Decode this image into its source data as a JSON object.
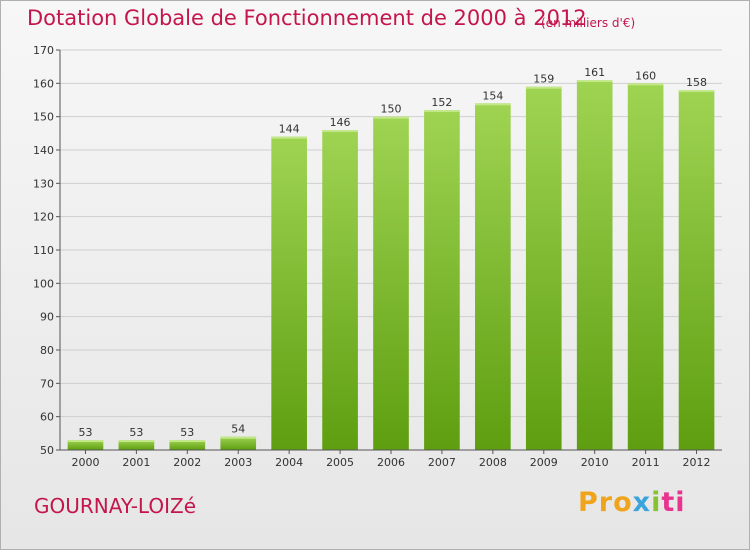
{
  "header": {
    "title": "Dotation Globale de Fonctionnement de 2000 à 2012",
    "subtitle": "(en milliers d'€)"
  },
  "footer": {
    "commune": "GOURNAY-LOIZé",
    "logo_parts": [
      "Pro",
      "x",
      "i",
      "ti"
    ]
  },
  "colors": {
    "bar_top": "#9fd453",
    "bar_bottom": "#5e9e10",
    "title": "#c4164d",
    "grid": "#cfcfcf"
  },
  "chart_data": {
    "type": "bar",
    "title": "Dotation Globale de Fonctionnement de 2000 à 2012",
    "subtitle": "(en milliers d'€)",
    "categories": [
      "2000",
      "2001",
      "2002",
      "2003",
      "2004",
      "2005",
      "2006",
      "2007",
      "2008",
      "2009",
      "2010",
      "2011",
      "2012"
    ],
    "values": [
      53,
      53,
      53,
      54,
      144,
      146,
      150,
      152,
      154,
      159,
      161,
      160,
      158
    ],
    "ylim": [
      50,
      170
    ],
    "yticks": [
      50,
      60,
      70,
      80,
      90,
      100,
      110,
      120,
      130,
      140,
      150,
      160,
      170
    ],
    "grid": true,
    "data_labels": true
  }
}
